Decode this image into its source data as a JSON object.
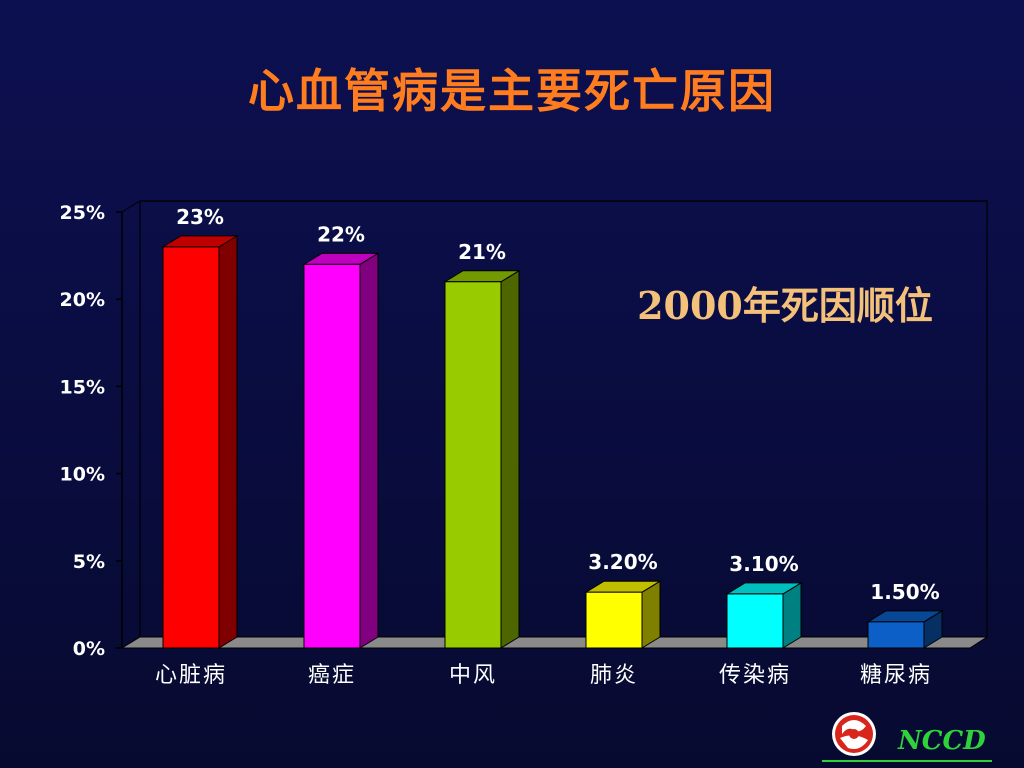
{
  "slide": {
    "title": "心血管病是主要死亡原因",
    "subtitle": "2000年死因顺位",
    "logo_text": "NCCD"
  },
  "colors": {
    "background": "#0a0d42",
    "title": "#ff7d1e",
    "subtitle": "#f4c17a",
    "logo": "#2fd23b"
  },
  "chart_data": {
    "type": "bar",
    "title": "",
    "xlabel": "",
    "ylabel": "",
    "ylim": [
      0,
      25
    ],
    "yticks": [
      "0%",
      "5%",
      "10%",
      "15%",
      "20%",
      "25%"
    ],
    "ytick_values": [
      0,
      5,
      10,
      15,
      20,
      25
    ],
    "categories": [
      "心脏病",
      "癌症",
      "中风",
      "肺炎",
      "传染病",
      "糖尿病"
    ],
    "values": [
      23,
      22,
      21,
      3.2,
      3.1,
      1.5
    ],
    "data_labels": [
      "23%",
      "22%",
      "21%",
      "3.20%",
      "3.10%",
      "1.50%"
    ],
    "bar_colors": [
      "#ff0000",
      "#ff00ff",
      "#99cc00",
      "#ffff00",
      "#00ffff",
      "#0b5fc6"
    ],
    "grid": false,
    "legend": "none"
  }
}
